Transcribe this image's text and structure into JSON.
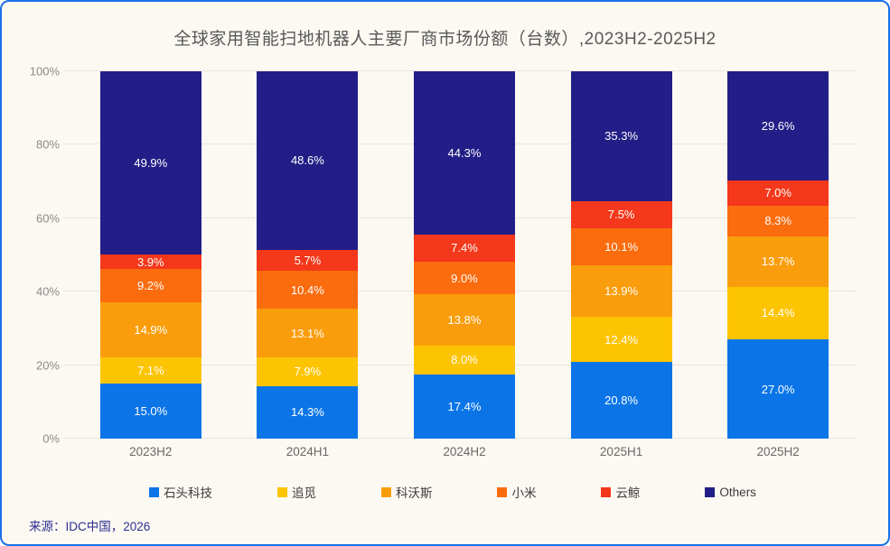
{
  "title": "全球家用智能扫地机器人主要厂商市场份额（台数）,2023H2-2025H2",
  "source": "来源：IDC中国，2026",
  "colors": {
    "card_background": "#FCF9F3",
    "card_border": "#1C6FE8",
    "gridline": "#E9E5DF",
    "title_text": "#595959",
    "axis_text": "#8B8B89",
    "xaxis_text": "#696967",
    "segment_label_text": "#FFFFFF",
    "legend_text": "#3B3B3B",
    "source_text": "#2E2F90"
  },
  "chart_data": {
    "type": "bar",
    "stacked": true,
    "title": "全球家用智能扫地机器人主要厂商市场份额（台数）,2023H2-2025H2",
    "categories": [
      "2023H2",
      "2024H1",
      "2024H2",
      "2025H1",
      "2025H2"
    ],
    "series": [
      {
        "name": "石头科技",
        "color": "#0B75E8",
        "values": [
          15.0,
          14.3,
          17.4,
          20.8,
          27.0
        ]
      },
      {
        "name": "追觅",
        "color": "#FDC404",
        "values": [
          7.1,
          7.9,
          8.0,
          12.4,
          14.4
        ]
      },
      {
        "name": "科沃斯",
        "color": "#FA9D0C",
        "values": [
          14.9,
          13.1,
          13.8,
          13.9,
          13.7
        ]
      },
      {
        "name": "小米",
        "color": "#FA6C0E",
        "values": [
          9.2,
          10.4,
          9.0,
          10.1,
          8.3
        ]
      },
      {
        "name": "云鲸",
        "color": "#F4381B",
        "values": [
          3.9,
          5.7,
          7.4,
          7.5,
          7.0
        ]
      },
      {
        "name": "Others",
        "color": "#231E87",
        "values": [
          49.9,
          48.6,
          44.3,
          35.3,
          29.6
        ]
      }
    ],
    "value_suffix": "%",
    "xlabel": "",
    "ylabel": "",
    "ylim": [
      0,
      100
    ],
    "y_ticks": [
      "0%",
      "20%",
      "40%",
      "60%",
      "80%",
      "100%"
    ],
    "grid": true,
    "legend_position": "bottom"
  }
}
